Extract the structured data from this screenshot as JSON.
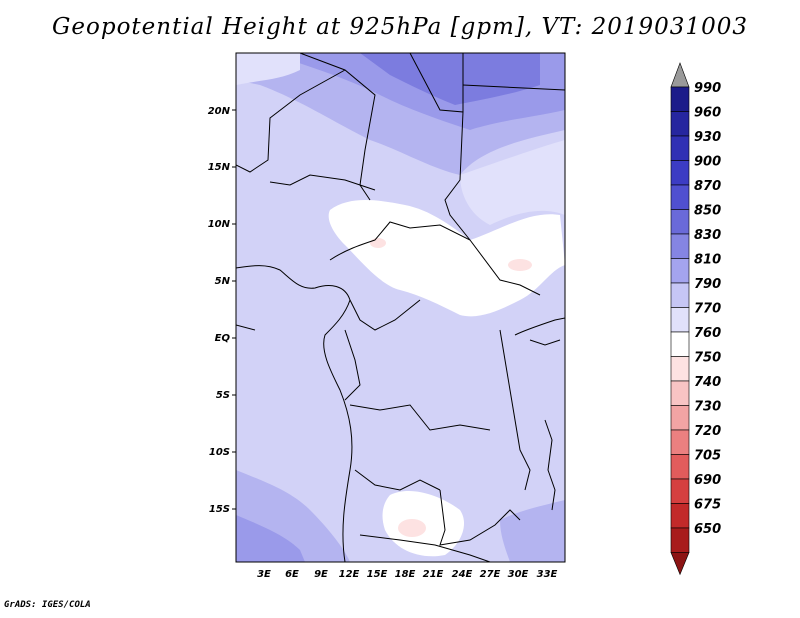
{
  "title": "Geopotential Height at 925hPa [gpm], VT: 2019031003",
  "credit": "GrADS: IGES/COLA",
  "map": {
    "lat_labels": [
      "20N",
      "15N",
      "10N",
      "5N",
      "EQ",
      "5S",
      "10S",
      "15S"
    ],
    "lon_labels": [
      "3E",
      "6E",
      "9E",
      "12E",
      "15E",
      "18E",
      "21E",
      "24E",
      "27E",
      "30E",
      "33E"
    ]
  },
  "colorbar": {
    "levels": [
      {
        "label": "990",
        "color": "#1c1c8a"
      },
      {
        "label": "960",
        "color": "#26269f"
      },
      {
        "label": "930",
        "color": "#3030b4"
      },
      {
        "label": "900",
        "color": "#3c3cc4"
      },
      {
        "label": "870",
        "color": "#5050d0"
      },
      {
        "label": "850",
        "color": "#6a6ad9"
      },
      {
        "label": "830",
        "color": "#8585e3"
      },
      {
        "label": "810",
        "color": "#a4a4ee"
      },
      {
        "label": "790",
        "color": "#c6c6f5"
      },
      {
        "label": "770",
        "color": "#e1e1fb"
      },
      {
        "label": "760",
        "color": "#ffffff"
      },
      {
        "label": "750",
        "color": "#fde2e2"
      },
      {
        "label": "740",
        "color": "#f8c4c4"
      },
      {
        "label": "730",
        "color": "#f2a4a4"
      },
      {
        "label": "720",
        "color": "#eb8080"
      },
      {
        "label": "705",
        "color": "#e25c5c"
      },
      {
        "label": "690",
        "color": "#d54040"
      },
      {
        "label": "675",
        "color": "#c22a2a"
      },
      {
        "label": "650",
        "color": "#a81c1c"
      }
    ],
    "top_arrow_color": "#9a9a9a",
    "bottom_arrow_color": "#8c1414"
  }
}
